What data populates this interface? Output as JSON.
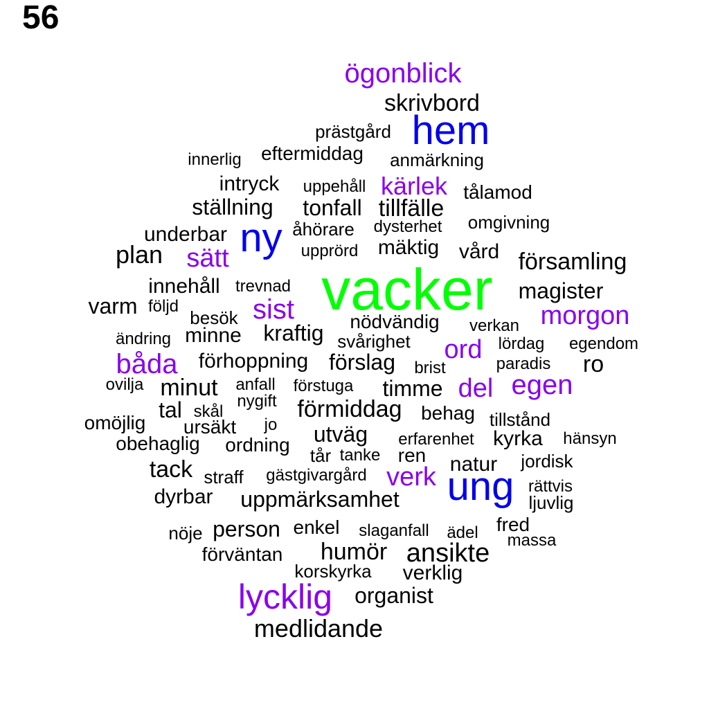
{
  "page_number": "56",
  "colors": {
    "large": "#00ff00",
    "medium": "#0000ee",
    "small": "#8800ee",
    "default": "#000000"
  },
  "words": [
    {
      "text": "vacker",
      "size": "large"
    },
    {
      "text": "hem",
      "size": "medium"
    },
    {
      "text": "ny",
      "size": "medium"
    },
    {
      "text": "ung",
      "size": "medium"
    },
    {
      "text": "ögonblick",
      "size": "small"
    },
    {
      "text": "kärlek",
      "size": "small"
    },
    {
      "text": "sätt",
      "size": "small"
    },
    {
      "text": "sist",
      "size": "small"
    },
    {
      "text": "morgon",
      "size": "small"
    },
    {
      "text": "ord",
      "size": "small"
    },
    {
      "text": "båda",
      "size": "small"
    },
    {
      "text": "del",
      "size": "small"
    },
    {
      "text": "egen",
      "size": "small"
    },
    {
      "text": "verk",
      "size": "small"
    },
    {
      "text": "lycklig",
      "size": "small"
    },
    {
      "text": "skrivbord"
    },
    {
      "text": "prästgård"
    },
    {
      "text": "innerlig"
    },
    {
      "text": "eftermiddag"
    },
    {
      "text": "anmärkning"
    },
    {
      "text": "intryck"
    },
    {
      "text": "uppehåll"
    },
    {
      "text": "tålamod"
    },
    {
      "text": "ställning"
    },
    {
      "text": "tonfall"
    },
    {
      "text": "tillfälle"
    },
    {
      "text": "omgivning"
    },
    {
      "text": "underbar"
    },
    {
      "text": "åhörare"
    },
    {
      "text": "dysterhet"
    },
    {
      "text": "plan"
    },
    {
      "text": "upprörd"
    },
    {
      "text": "mäktig"
    },
    {
      "text": "vård"
    },
    {
      "text": "församling"
    },
    {
      "text": "innehåll"
    },
    {
      "text": "trevnad"
    },
    {
      "text": "magister"
    },
    {
      "text": "varm"
    },
    {
      "text": "följd"
    },
    {
      "text": "besök"
    },
    {
      "text": "nödvändig"
    },
    {
      "text": "verkan"
    },
    {
      "text": "ändring"
    },
    {
      "text": "minne"
    },
    {
      "text": "kraftig"
    },
    {
      "text": "svårighet"
    },
    {
      "text": "lördag"
    },
    {
      "text": "egendom"
    },
    {
      "text": "förhoppning"
    },
    {
      "text": "förslag"
    },
    {
      "text": "brist"
    },
    {
      "text": "paradis"
    },
    {
      "text": "ro"
    },
    {
      "text": "ovilja"
    },
    {
      "text": "minut"
    },
    {
      "text": "anfall"
    },
    {
      "text": "förstuga"
    },
    {
      "text": "timme"
    },
    {
      "text": "tal"
    },
    {
      "text": "skål"
    },
    {
      "text": "nygift"
    },
    {
      "text": "förmiddag"
    },
    {
      "text": "behag"
    },
    {
      "text": "tillstånd"
    },
    {
      "text": "omöjlig"
    },
    {
      "text": "ursäkt"
    },
    {
      "text": "jo"
    },
    {
      "text": "utväg"
    },
    {
      "text": "erfarenhet"
    },
    {
      "text": "kyrka"
    },
    {
      "text": "hänsyn"
    },
    {
      "text": "obehaglig"
    },
    {
      "text": "ordning"
    },
    {
      "text": "tår"
    },
    {
      "text": "tanke"
    },
    {
      "text": "ren"
    },
    {
      "text": "natur"
    },
    {
      "text": "jordisk"
    },
    {
      "text": "tack"
    },
    {
      "text": "straff"
    },
    {
      "text": "gästgivargård"
    },
    {
      "text": "rättvis"
    },
    {
      "text": "dyrbar"
    },
    {
      "text": "uppmärksamhet"
    },
    {
      "text": "ljuvlig"
    },
    {
      "text": "nöje"
    },
    {
      "text": "person"
    },
    {
      "text": "enkel"
    },
    {
      "text": "slaganfall"
    },
    {
      "text": "ädel"
    },
    {
      "text": "fred"
    },
    {
      "text": "massa"
    },
    {
      "text": "förväntan"
    },
    {
      "text": "humör"
    },
    {
      "text": "ansikte"
    },
    {
      "text": "korskyrka"
    },
    {
      "text": "verklig"
    },
    {
      "text": "organist"
    },
    {
      "text": "medlidande"
    }
  ]
}
